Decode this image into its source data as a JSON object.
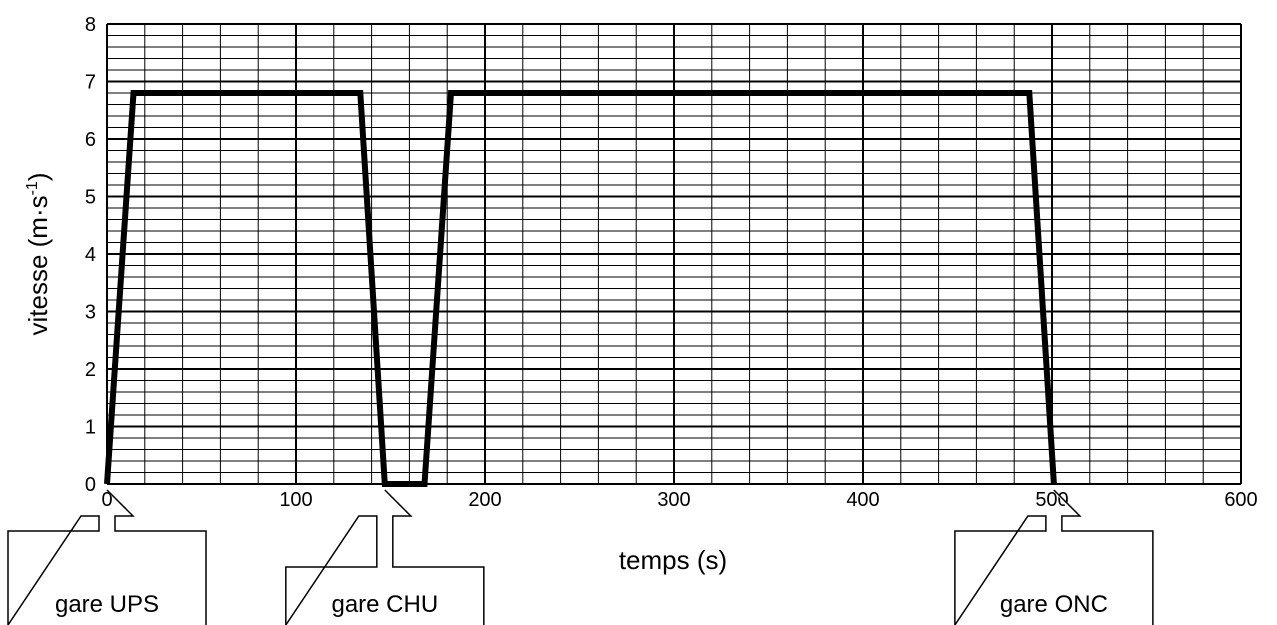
{
  "chart_data": {
    "type": "line",
    "xlabel": "temps (s)",
    "ylabel": "vitesse (m·s",
    "ylabel_superscript": "-1",
    "ylabel_close": ")",
    "xlim": [
      0,
      600
    ],
    "ylim": [
      0,
      8
    ],
    "x_ticks": [
      0,
      100,
      200,
      300,
      400,
      500,
      600
    ],
    "y_ticks": [
      0,
      1,
      2,
      3,
      4,
      5,
      6,
      7,
      8
    ],
    "grid": true,
    "series": [
      {
        "points": [
          [
            0,
            0
          ],
          [
            14,
            6.8
          ],
          [
            134,
            6.8
          ],
          [
            147,
            0
          ],
          [
            168,
            0
          ],
          [
            182,
            6.8
          ],
          [
            488,
            6.8
          ],
          [
            501,
            0
          ]
        ]
      }
    ],
    "annotations": [
      {
        "label": "gare UPS",
        "x": 0
      },
      {
        "label": "gare CHU",
        "x": 147
      },
      {
        "label": "gare ONC",
        "x": 501
      }
    ],
    "line_color": "#000000"
  }
}
